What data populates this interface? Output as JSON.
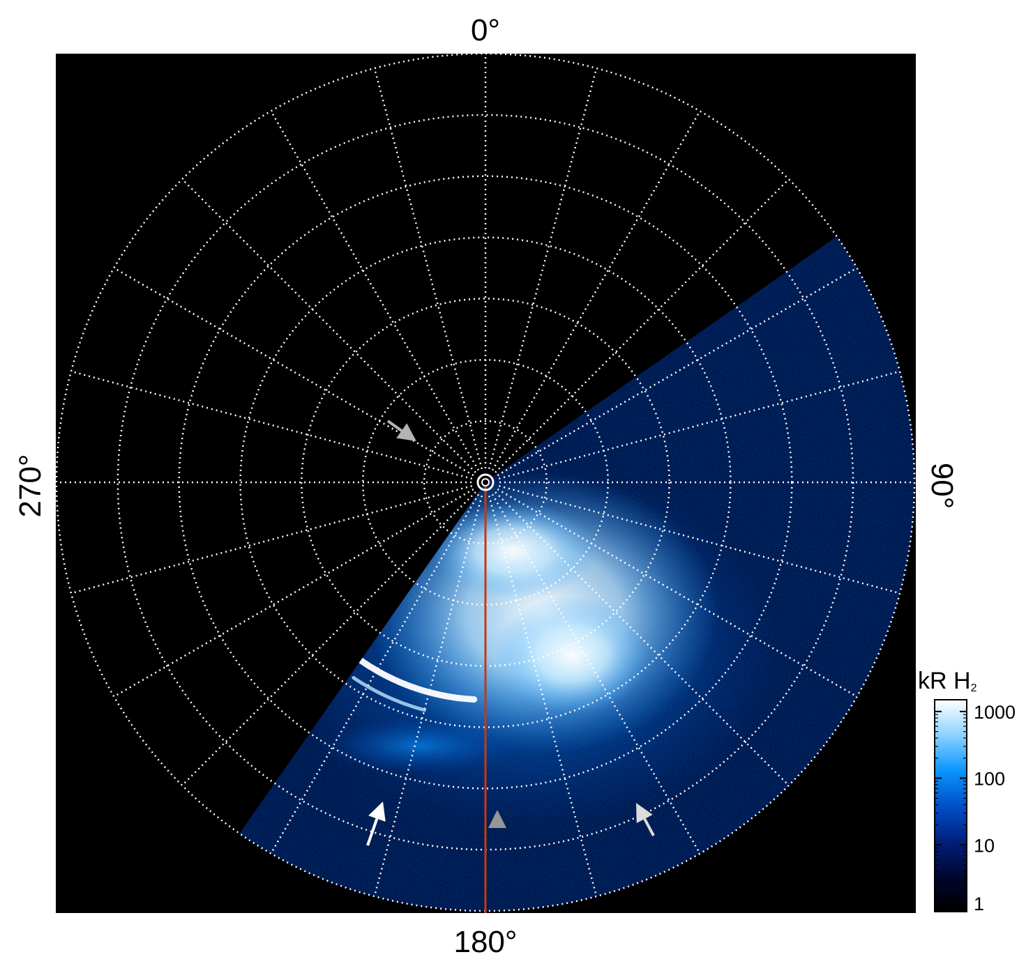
{
  "chart_data": {
    "type": "heatmap",
    "projection": "polar",
    "title": "",
    "azimuth_labels": {
      "top": "0°",
      "right": "90°",
      "bottom": "180°",
      "left": "270°"
    },
    "meridian_spacing_deg": 15,
    "latitude_circles": 7,
    "grid": "dotted white",
    "plot_background": "#000000",
    "marked_meridian": {
      "longitude_deg": 180,
      "color": "#c8380f"
    },
    "coverage_sector_deg": [
      55,
      215
    ],
    "arrows": [
      {
        "color": "#b4b4b4",
        "longitude_deg": 300,
        "latitude_ring": 1.0
      },
      {
        "color": "#ffffff",
        "longitude_deg": 200,
        "latitude_ring": 4.0
      },
      {
        "color": "#969696",
        "longitude_deg": 178,
        "latitude_ring": 3.9
      },
      {
        "color": "#dcdcdc",
        "longitude_deg": 147,
        "latitude_ring": 4.0
      }
    ],
    "colorbar": {
      "label": "kR H",
      "label_subscript": "2",
      "scale": "log",
      "range": [
        1,
        1500
      ],
      "ticks": [
        {
          "value": 1,
          "label": "1"
        },
        {
          "value": 10,
          "label": "10"
        },
        {
          "value": 100,
          "label": "100"
        },
        {
          "value": 1000,
          "label": "1000"
        }
      ],
      "colors": [
        "#000000",
        "#00062e",
        "#00207f",
        "#0050c8",
        "#0a96ff",
        "#8cd2ff",
        "#ffffff"
      ]
    }
  }
}
